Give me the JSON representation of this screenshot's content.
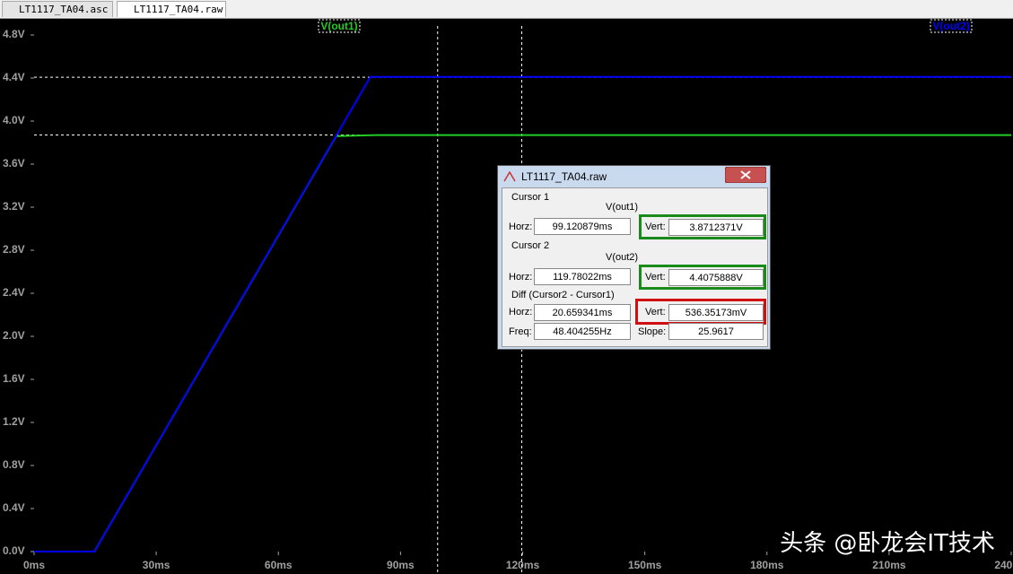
{
  "tabs": [
    "LT1117_TA04.asc",
    "LT1117_TA04.raw"
  ],
  "chart_data": {
    "type": "line",
    "xlim": [
      0,
      240
    ],
    "xticks": [
      {
        "value": 0,
        "label": "0ms"
      },
      {
        "value": 30,
        "label": "30ms"
      },
      {
        "value": 60,
        "label": "60ms"
      },
      {
        "value": 90,
        "label": "90ms"
      },
      {
        "value": 120,
        "label": "120ms"
      },
      {
        "value": 150,
        "label": "150ms"
      },
      {
        "value": 180,
        "label": "180ms"
      },
      {
        "value": 210,
        "label": "210ms"
      },
      {
        "value": 240,
        "label": "240ms"
      }
    ],
    "ylim": [
      0,
      4.8
    ],
    "yticks": [
      {
        "value": 0,
        "label": "0.0V"
      },
      {
        "value": 0.4,
        "label": "0.4V"
      },
      {
        "value": 0.8,
        "label": "0.8V"
      },
      {
        "value": 1.2,
        "label": "1.2V"
      },
      {
        "value": 1.6,
        "label": "1.6V"
      },
      {
        "value": 2.0,
        "label": "2.0V"
      },
      {
        "value": 2.4,
        "label": "2.4V"
      },
      {
        "value": 2.8,
        "label": "2.8V"
      },
      {
        "value": 3.2,
        "label": "3.2V"
      },
      {
        "value": 3.6,
        "label": "3.6V"
      },
      {
        "value": 4.0,
        "label": "4.0V"
      },
      {
        "value": 4.4,
        "label": "4.4V"
      },
      {
        "value": 4.8,
        "label": "4.8V"
      }
    ],
    "grid": false,
    "series": [
      {
        "name": "V(out1)",
        "color": "#22cc22",
        "x": [
          0,
          14.8,
          74.2,
          84,
          240
        ],
        "values": [
          0,
          0,
          3.86,
          3.87,
          3.87
        ]
      },
      {
        "name": "V(out2)",
        "color": "#0000ff",
        "x": [
          0,
          14.8,
          82.6,
          240
        ],
        "values": [
          0,
          0,
          4.41,
          4.41
        ]
      }
    ],
    "cursors": [
      {
        "x": 99.120879,
        "y": 3.8712371
      },
      {
        "x": 119.78022,
        "y": 4.4075888
      }
    ]
  },
  "cursor_window": {
    "title": "LT1117_TA04.raw",
    "cursor1": {
      "label": "Cursor 1",
      "horz_label": "Horz:",
      "horz": "99.120879ms",
      "vert_label": "Vert:",
      "vert": "3.8712371V"
    },
    "cursor2": {
      "label": "Cursor 2",
      "horz_label": "Horz:",
      "horz": "119.78022ms",
      "vert_label": "Vert:",
      "vert": "4.4075888V"
    },
    "diff": {
      "label": "Diff (Cursor2 - Cursor1)",
      "horz_label": "Horz:",
      "horz": "20.659341ms",
      "vert_label": "Vert:",
      "vert": "536.35173mV",
      "freq_label": "Freq:",
      "freq": "48.404255Hz",
      "slope_label": "Slope:",
      "slope": "25.9617"
    }
  },
  "watermark": "头条 @卧龙会IT技术"
}
